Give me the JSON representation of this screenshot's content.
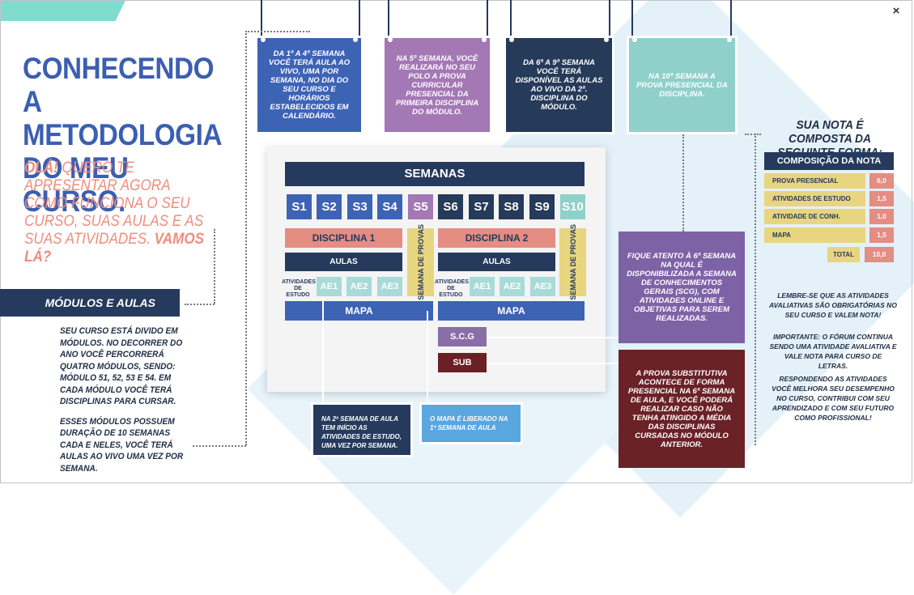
{
  "window": {
    "close_label": "×"
  },
  "title": "CONHECENDO A METODOLOGIA DO MEU CURSO.",
  "intro": {
    "lead": "OLÁ!",
    "text": " QUERO TE APRESENTAR AGORA COMO FUNCIONA O SEU CURSO, SUAS AULAS E AS SUAS ATIVIDADES. ",
    "tail": "VAMOS LÁ?"
  },
  "modulos": {
    "heading": "MÓDULOS E AULAS",
    "para1": "SEU CURSO ESTÁ DIVIDO EM MÓDULOS. NO DECORRER DO ANO VOCÊ PERCORRERÁ QUATRO MÓDULOS, SENDO: MÓDULO 51, 52, 53 E 54. EM CADA MÓDULO VOCÊ TERÁ DISCIPLINAS PARA CURSAR.",
    "para2": "ESSES MÓDULOS POSSUEM DURAÇÃO DE 10 SEMANAS CADA E NELES, VOCÊ TERÁ AULAS AO VIVO UMA VEZ POR SEMANA."
  },
  "top_boxes": [
    "DA 1ª A 4ª SEMANA VOCÊ TERÁ AULA AO VIVO, UMA POR SEMANA, NO DIA DO SEU CURSO E HORÁRIOS ESTABELECIDOS EM CALENDÁRIO.",
    "NA 5ª SEMANA, VOCÊ REALIZARÁ NO SEU POLO A PROVA CURRICULAR PRESENCIAL DA PRIMEIRA DISCIPLINA DO MÓDULO.",
    "DA 6ª A 9ª SEMANA VOCÊ TERÁ DISPONÍVEL AS AULAS AO VIVO DA 2ª. DISCIPLINA DO MÓDULO.",
    "NA 10ª SEMANA A PROVA PRESENCIAL DA DISCIPLINA."
  ],
  "diagram": {
    "header": "SEMANAS",
    "weeks": [
      "S1",
      "S2",
      "S3",
      "S4",
      "S5",
      "S6",
      "S7",
      "S8",
      "S9",
      "S10"
    ],
    "week_colors": [
      "#3d63b5",
      "#3d63b5",
      "#3d63b5",
      "#3d63b5",
      "#a477b5",
      "#263a59",
      "#263a59",
      "#263a59",
      "#263a59",
      "#8fd0ca"
    ],
    "disciplina1": "DISCIPLINA 1",
    "disciplina2": "DISCIPLINA 2",
    "aulas": "AULAS",
    "atividades_label": "ATIVIDADES DE ESTUDO",
    "ae": [
      "AE1",
      "AE2",
      "AE3"
    ],
    "semana_provas": "SEMANA DE PROVAS",
    "mapa": "MAPA",
    "scg": "S.C.G",
    "sub": "SUB"
  },
  "callouts": {
    "scg_note": "FIQUE ATENTO À 6ª SEMANA NA QUAL É DISPONIBILIZADA A SEMANA DE CONHECIMENTOS GERAIS (SCG), COM ATIVIDADES ONLINE E OBJETIVAS PARA SEREM REALIZADAS.",
    "sub_note": "A PROVA SUBSTITUTIVA ACONTECE DE FORMA PRESENCIAL NA 6ª SEMANA DE AULA, E VOCÊ PODERÁ REALIZAR CASO NÃO TENHA ATINGIDO A MÉDIA DAS DISCIPLINAS CURSADAS NO MÓDULO ANTERIOR.",
    "ae_note": "NA 2ª SEMANA DE AULA TEM INÍCIO AS ATIVIDADES DE ESTUDO, UMA VEZ POR SEMANA.",
    "mapa_note": "O MAPA É LIBERADO NA 1ª SEMANA DE AULA"
  },
  "nota": {
    "title": "SUA NOTA É COMPOSTA DA SEGUINTE FORMA:",
    "header": "COMPOSIÇÃO DA NOTA",
    "rows": [
      {
        "label": "PROVA PRESENCIAL",
        "value": "6,0"
      },
      {
        "label": "ATIVIDADES DE ESTUDO",
        "value": "1,5"
      },
      {
        "label": "ATIVIDADE DE CONH. GERAIS",
        "value": "1,0"
      },
      {
        "label": "MAPA",
        "value": "1,5"
      }
    ],
    "total_label": "TOTAL",
    "total_value": "10,0"
  },
  "notes": [
    "LEMBRE-SE QUE AS ATIVIDADES AVALIATIVAS SÃO OBRIGATÓRIAS NO SEU CURSO E VALEM NOTA!",
    "IMPORTANTE: O FÓRUM CONTINUA SENDO UMA ATIVIDADE AVALIATIVA E VALE NOTA PARA CURSO DE LETRAS.",
    "RESPONDENDO AS ATIVIDADES VOCÊ MELHORA SEU DESEMPENHO NO CURSO, CONTRIBUI COM SEU APRENDIZADO E COM SEU FUTURO COMO PROFISSIONAL!"
  ]
}
